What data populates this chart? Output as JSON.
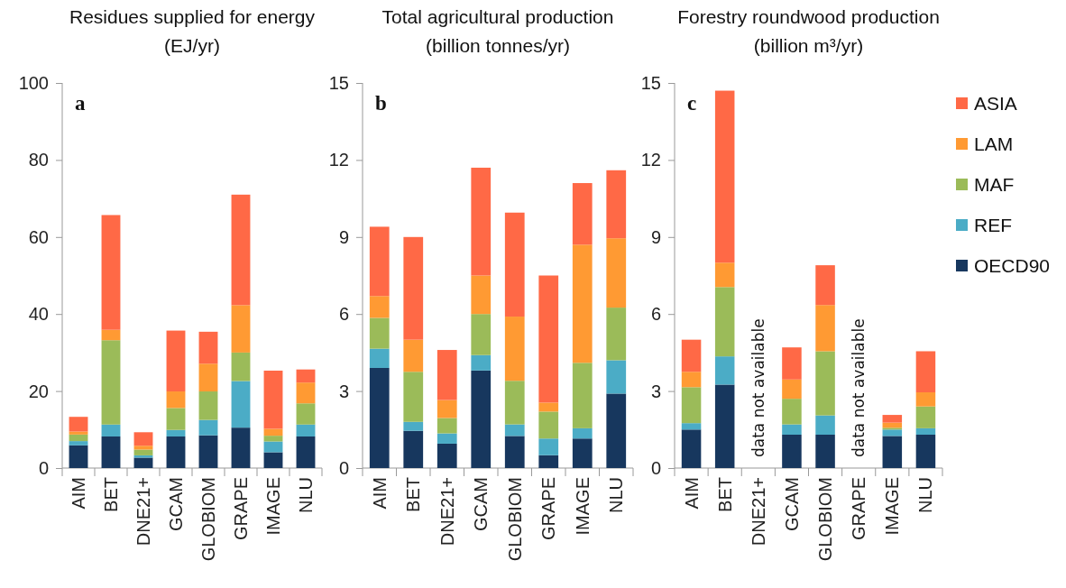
{
  "chart_data": [
    {
      "type": "bar",
      "title": "Residues supplied for energy",
      "subtitle": "(EJ/yr)",
      "categories": [
        "AIM",
        "BET",
        "DNE21+",
        "GCAM",
        "GLOBIOM",
        "GRAPE",
        "IMAGE",
        "NLU"
      ],
      "stacked": true,
      "ylim": [
        0,
        100
      ],
      "yticks": [
        0,
        20,
        40,
        60,
        80,
        100
      ],
      "legend": false,
      "annotations": [
        "a"
      ],
      "series": [
        {
          "color": "#17375e",
          "values": [
            5.9,
            8.2,
            2.7,
            8.2,
            8.5,
            10.5,
            4.1,
            8.2
          ]
        },
        {
          "color": "#4bacc6",
          "values": [
            1.1,
            3.1,
            0.6,
            1.7,
            4.0,
            12.1,
            2.8,
            3.1
          ]
        },
        {
          "color": "#9bbb59",
          "values": [
            1.7,
            21.9,
            1.5,
            5.7,
            7.4,
            7.4,
            1.5,
            5.5
          ]
        },
        {
          "color": "#ff9a33",
          "values": [
            0.8,
            2.7,
            1.0,
            4.3,
            7.2,
            12.3,
            1.8,
            5.4
          ]
        },
        {
          "color": "#ff6946",
          "values": [
            3.8,
            29.8,
            3.5,
            15.8,
            8.3,
            28.7,
            15.1,
            3.4
          ]
        }
      ]
    },
    {
      "type": "bar",
      "title": "Total agricultural production",
      "subtitle": "(billion tonnes/yr)",
      "categories": [
        "AIM",
        "BET",
        "DNE21+",
        "GCAM",
        "GLOBIOM",
        "GRAPE",
        "IMAGE",
        "NLU"
      ],
      "stacked": true,
      "ylim": [
        0,
        15
      ],
      "yticks": [
        0,
        3,
        6,
        9,
        12,
        15
      ],
      "legend": false,
      "annotations": [
        "b"
      ],
      "series": [
        {
          "color": "#17375e",
          "values": [
            3.9,
            1.45,
            0.95,
            3.8,
            1.25,
            0.5,
            1.15,
            2.9
          ]
        },
        {
          "color": "#4bacc6",
          "values": [
            0.75,
            0.35,
            0.4,
            0.6,
            0.45,
            0.65,
            0.4,
            1.3
          ]
        },
        {
          "color": "#9bbb59",
          "values": [
            1.2,
            1.95,
            0.6,
            1.6,
            1.7,
            1.05,
            2.55,
            2.05
          ]
        },
        {
          "color": "#ff9a33",
          "values": [
            0.85,
            1.25,
            0.7,
            1.5,
            2.5,
            0.35,
            4.6,
            2.7
          ]
        },
        {
          "color": "#ff6946",
          "values": [
            2.7,
            4.0,
            1.95,
            4.2,
            4.05,
            4.95,
            2.4,
            2.65
          ]
        }
      ]
    },
    {
      "type": "bar",
      "title": "Forestry roundwood production",
      "subtitle": "(billion m³/yr)",
      "categories": [
        "AIM",
        "BET",
        "DNE21+",
        "GCAM",
        "GLOBIOM",
        "GRAPE",
        "IMAGE",
        "NLU"
      ],
      "stacked": true,
      "ylim": [
        0,
        15
      ],
      "yticks": [
        0,
        3,
        6,
        9,
        12,
        15
      ],
      "legend": "right",
      "annotations": [
        "c",
        "data not available",
        "data not available"
      ],
      "series": [
        {
          "name": "OECD90",
          "color": "#17375e",
          "values": [
            1.5,
            3.25,
            null,
            1.3,
            1.3,
            null,
            1.25,
            1.3
          ]
        },
        {
          "name": "REF",
          "color": "#4bacc6",
          "values": [
            0.25,
            1.1,
            null,
            0.4,
            0.75,
            null,
            0.25,
            0.25
          ]
        },
        {
          "name": "MAF",
          "color": "#9bbb59",
          "values": [
            1.4,
            2.7,
            null,
            1.0,
            2.5,
            null,
            0.07,
            0.85
          ]
        },
        {
          "name": "LAM",
          "color": "#ff9a33",
          "values": [
            0.6,
            0.95,
            null,
            0.75,
            1.8,
            null,
            0.2,
            0.55
          ]
        },
        {
          "name": "ASIA",
          "color": "#ff6946",
          "values": [
            1.25,
            6.7,
            null,
            1.25,
            1.55,
            null,
            0.3,
            1.6
          ]
        }
      ]
    }
  ]
}
